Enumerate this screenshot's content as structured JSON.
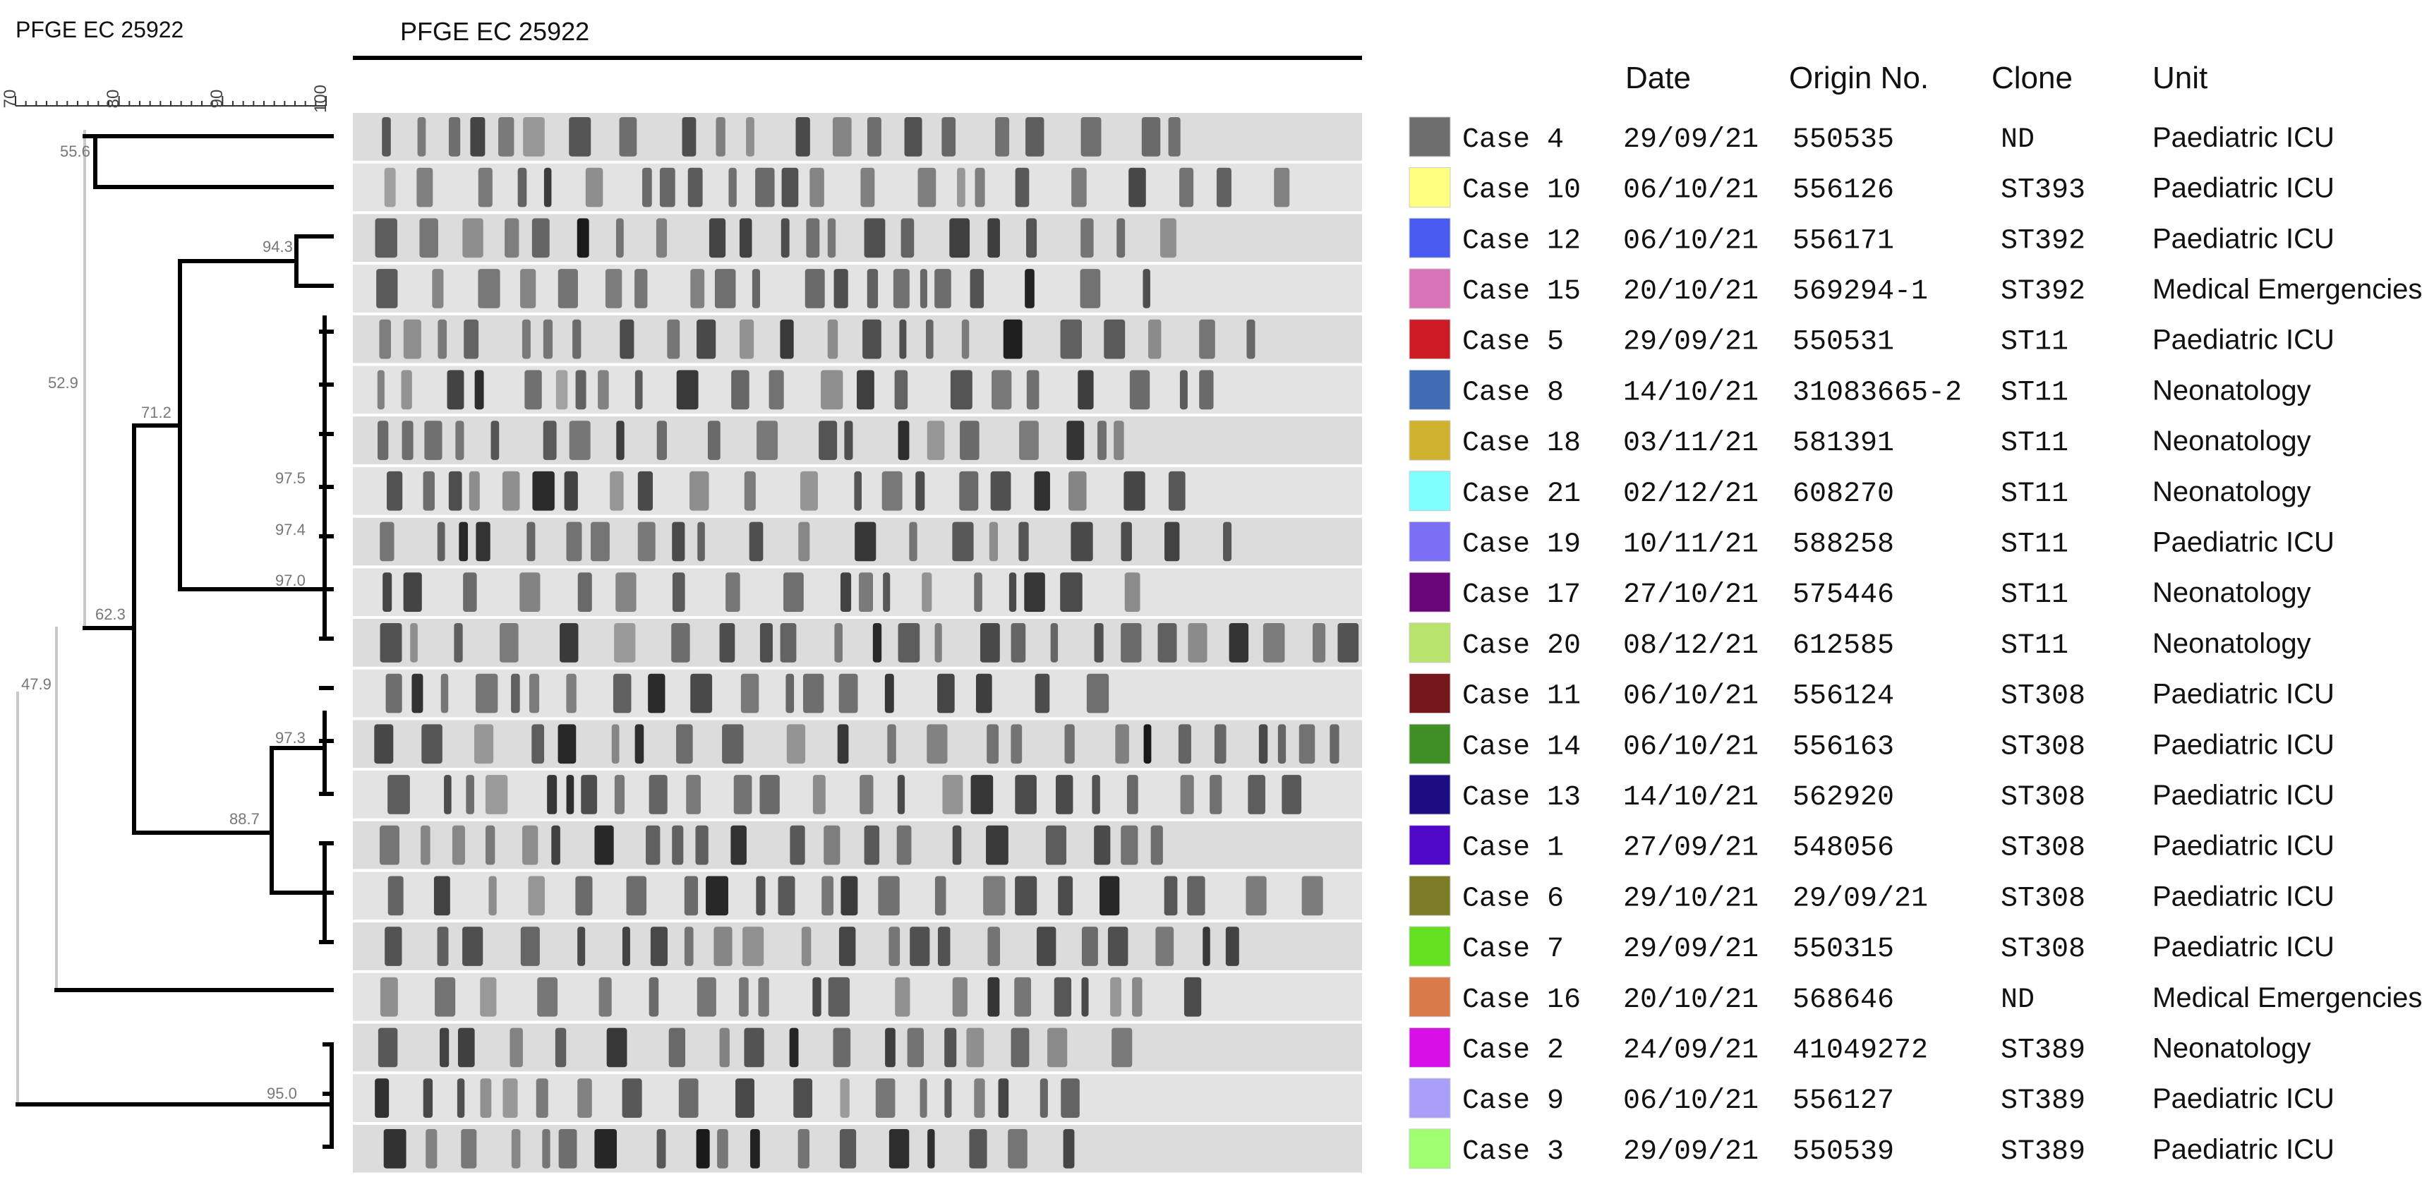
{
  "dendrogram_title": "PFGE EC 25922",
  "gel_title": "PFGE EC 25922",
  "scale_ticks": [
    "70",
    "80",
    "90",
    "100"
  ],
  "node_labels": [
    "55.6",
    "52.9",
    "94.3",
    "71.2",
    "97.5",
    "97.4",
    "97.0",
    "62.3",
    "97.3",
    "88.7",
    "47.9",
    "95.0"
  ],
  "headers": {
    "date": "Date",
    "origin": "Origin No.",
    "clone": "Clone",
    "unit": "Unit"
  },
  "rows": [
    {
      "case": "Case 4",
      "date": "29/09/21",
      "origin": "550535",
      "clone": "ND",
      "unit": "Paediatric ICU",
      "color": "#6e6e6e"
    },
    {
      "case": "Case 10",
      "date": "06/10/21",
      "origin": "556126",
      "clone": "ST393",
      "unit": "Paediatric ICU",
      "color": "#ffff80"
    },
    {
      "case": "Case 12",
      "date": "06/10/21",
      "origin": "556171",
      "clone": "ST392",
      "unit": "Paediatric ICU",
      "color": "#4a5cf0"
    },
    {
      "case": "Case 15",
      "date": "20/10/21",
      "origin": "569294-1",
      "clone": "ST392",
      "unit": "Medical Emergencies",
      "color": "#d873b8"
    },
    {
      "case": "Case 5",
      "date": "29/09/21",
      "origin": "550531",
      "clone": "ST11",
      "unit": "Paediatric ICU",
      "color": "#cc1c24"
    },
    {
      "case": "Case 8",
      "date": "14/10/21",
      "origin": "31083665-2",
      "clone": "ST11",
      "unit": "Neonatology",
      "color": "#3f6cb3"
    },
    {
      "case": "Case 18",
      "date": "03/11/21",
      "origin": "581391",
      "clone": "ST11",
      "unit": "Neonatology",
      "color": "#cfb22e"
    },
    {
      "case": "Case 21",
      "date": "02/12/21",
      "origin": "608270",
      "clone": "ST11",
      "unit": "Neonatology",
      "color": "#80ffff"
    },
    {
      "case": "Case 19",
      "date": "10/11/21",
      "origin": "588258",
      "clone": "ST11",
      "unit": "Paediatric ICU",
      "color": "#7a6ff5"
    },
    {
      "case": "Case 17",
      "date": "27/10/21",
      "origin": "575446",
      "clone": "ST11",
      "unit": "Neonatology",
      "color": "#6a0578"
    },
    {
      "case": "Case 20",
      "date": "08/12/21",
      "origin": "612585",
      "clone": "ST11",
      "unit": "Neonatology",
      "color": "#b7e46a"
    },
    {
      "case": "Case 11",
      "date": "06/10/21",
      "origin": "556124",
      "clone": "ST308",
      "unit": "Paediatric ICU",
      "color": "#74171b"
    },
    {
      "case": "Case 14",
      "date": "06/10/21",
      "origin": "556163",
      "clone": "ST308",
      "unit": "Paediatric ICU",
      "color": "#3f8e26"
    },
    {
      "case": "Case 13",
      "date": "14/10/21",
      "origin": "562920",
      "clone": "ST308",
      "unit": "Paediatric ICU",
      "color": "#1c0d80"
    },
    {
      "case": "Case 1",
      "date": "27/09/21",
      "origin": "548056",
      "clone": "ST308",
      "unit": "Paediatric ICU",
      "color": "#4f08c8"
    },
    {
      "case": "Case 6",
      "date": "29/10/21",
      "origin": "29/09/21",
      "clone": "ST308",
      "unit": "Paediatric ICU",
      "color": "#7c7c26"
    },
    {
      "case": "Case 7",
      "date": "29/09/21",
      "origin": "550315",
      "clone": "ST308",
      "unit": "Paediatric ICU",
      "color": "#63e020"
    },
    {
      "case": "Case 16",
      "date": "20/10/21",
      "origin": "568646",
      "clone": "ND",
      "unit": "Medical Emergencies",
      "color": "#d97a4a"
    },
    {
      "case": "Case 2",
      "date": "24/09/21",
      "origin": "41049272",
      "clone": "ST389",
      "unit": "Neonatology",
      "color": "#d710e8"
    },
    {
      "case": "Case 9",
      "date": "06/10/21",
      "origin": "556127",
      "clone": "ST389",
      "unit": "Paediatric ICU",
      "color": "#a8a0f8"
    },
    {
      "case": "Case 3",
      "date": "29/09/21",
      "origin": "550539",
      "clone": "ST389",
      "unit": "Paediatric ICU",
      "color": "#a0ff70"
    }
  ]
}
